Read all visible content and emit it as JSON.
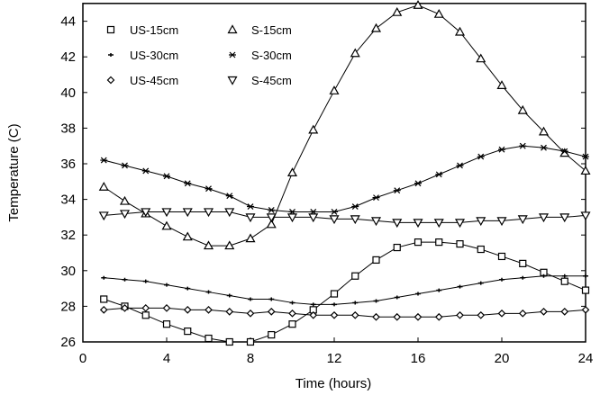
{
  "chart_data": {
    "type": "line",
    "title": "",
    "xlabel": "Time (hours)",
    "ylabel": "Temperature (C)",
    "xlim": [
      0,
      24
    ],
    "ylim": [
      26,
      45
    ],
    "xticks": [
      0,
      4,
      8,
      12,
      16,
      20,
      24
    ],
    "yticks": [
      26,
      28,
      30,
      32,
      34,
      36,
      38,
      40,
      42,
      44
    ],
    "grid": false,
    "legend_position": "top-left",
    "x": [
      1,
      2,
      3,
      4,
      5,
      6,
      7,
      8,
      9,
      10,
      11,
      12,
      13,
      14,
      15,
      16,
      17,
      18,
      19,
      20,
      21,
      22,
      23,
      24
    ],
    "series": [
      {
        "name": "US-15cm",
        "marker": "square",
        "values": [
          28.4,
          28.0,
          27.5,
          27.0,
          26.6,
          26.2,
          26.0,
          26.0,
          26.4,
          27.0,
          27.8,
          28.7,
          29.7,
          30.6,
          31.3,
          31.6,
          31.6,
          31.5,
          31.2,
          30.8,
          30.4,
          29.9,
          29.4,
          28.9
        ]
      },
      {
        "name": "S-15cm",
        "marker": "triangle",
        "values": [
          34.7,
          33.9,
          33.2,
          32.5,
          31.9,
          31.4,
          31.4,
          31.8,
          32.6,
          35.5,
          37.9,
          40.1,
          42.2,
          43.6,
          44.5,
          44.9,
          44.4,
          43.4,
          41.9,
          40.4,
          39.0,
          37.8,
          36.6,
          35.6
        ]
      },
      {
        "name": "US-30cm",
        "marker": "dash",
        "values": [
          29.6,
          29.5,
          29.4,
          29.2,
          29.0,
          28.8,
          28.6,
          28.4,
          28.4,
          28.2,
          28.1,
          28.1,
          28.2,
          28.3,
          28.5,
          28.7,
          28.9,
          29.1,
          29.3,
          29.5,
          29.6,
          29.7,
          29.7,
          29.7
        ]
      },
      {
        "name": "S-30cm",
        "marker": "star",
        "values": [
          36.2,
          35.9,
          35.6,
          35.3,
          34.9,
          34.6,
          34.2,
          33.6,
          33.4,
          33.3,
          33.3,
          33.3,
          33.6,
          34.1,
          34.5,
          34.9,
          35.4,
          35.9,
          36.4,
          36.8,
          37.0,
          36.9,
          36.7,
          36.4
        ]
      },
      {
        "name": "US-45cm",
        "marker": "diamond",
        "values": [
          27.8,
          27.9,
          27.9,
          27.9,
          27.8,
          27.8,
          27.7,
          27.6,
          27.7,
          27.6,
          27.5,
          27.5,
          27.5,
          27.4,
          27.4,
          27.4,
          27.4,
          27.5,
          27.5,
          27.6,
          27.6,
          27.7,
          27.7,
          27.8
        ]
      },
      {
        "name": "S-45cm",
        "marker": "inv-triangle",
        "values": [
          33.1,
          33.2,
          33.3,
          33.3,
          33.3,
          33.3,
          33.3,
          33.0,
          33.0,
          33.0,
          33.0,
          32.9,
          32.9,
          32.8,
          32.7,
          32.7,
          32.7,
          32.7,
          32.8,
          32.8,
          32.9,
          33.0,
          33.0,
          33.1
        ]
      }
    ]
  }
}
